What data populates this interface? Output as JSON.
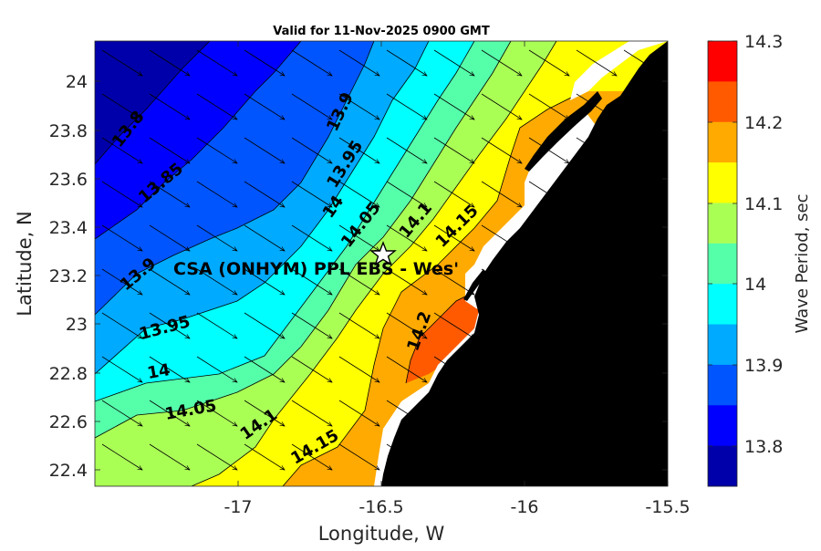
{
  "title": "Valid for 11-Nov-2025 0900 GMT",
  "xlabel": "Longitude, W",
  "ylabel": "Latitude, N",
  "colorbar_label": "Wave Period, sec",
  "x_ticks": [
    "-17",
    "-16.5",
    "-16",
    "-15.5"
  ],
  "y_ticks": [
    "24",
    "23.8",
    "23.6",
    "23.4",
    "23.2",
    "23",
    "22.8",
    "22.6",
    "22.4"
  ],
  "colorbar_ticks": [
    "14.3",
    "14.2",
    "14.1",
    "14",
    "13.9",
    "13.8"
  ],
  "colorbar_colors": [
    "#ff0000",
    "#ff5a00",
    "#ffaa00",
    "#ffff00",
    "#aaff55",
    "#55ffaa",
    "#00ffff",
    "#00aaff",
    "#0055ff",
    "#0000ff",
    "#0000aa"
  ],
  "site_label": "CSA (ONHYM) PPL EBS  - Wes'",
  "contour_labels": [
    "13.8",
    "13.85",
    "13.9",
    "13.95",
    "14",
    "14.05",
    "14.1",
    "14.15",
    "13.9",
    "13.95",
    "14",
    "14.05",
    "14.1",
    "14.15",
    "14.2"
  ],
  "chart_data": {
    "type": "heatmap",
    "title": "Valid for 11-Nov-2025 0900 GMT",
    "xlabel": "Longitude, W",
    "ylabel": "Latitude, N",
    "xlim": [
      -17.48,
      -15.5
    ],
    "ylim": [
      22.33,
      24.17
    ],
    "colorbar": {
      "label": "Wave Period, sec",
      "range": [
        13.75,
        14.3
      ]
    },
    "contour_levels": [
      13.8,
      13.85,
      13.9,
      13.95,
      14.0,
      14.05,
      14.1,
      14.15,
      14.2
    ],
    "wave_direction": "arrows pointing toward east-southeast",
    "site_marker": {
      "lon": -16.5,
      "lat": 23.3,
      "label": "CSA (ONHYM) PPL EBS  - Wes'"
    },
    "land": "black coastline on the east side"
  }
}
